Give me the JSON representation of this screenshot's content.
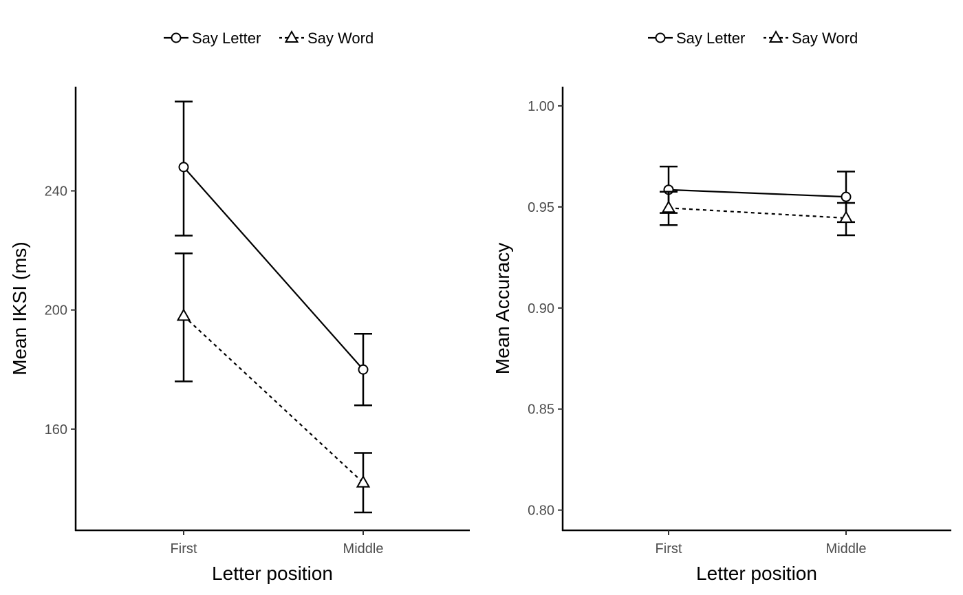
{
  "chart_data": [
    {
      "type": "line",
      "xlabel": "Letter position",
      "ylabel": "Mean IKSI (ms)",
      "categories": [
        "First",
        "Middle"
      ],
      "ylim": [
        126,
        275
      ],
      "yticks": [
        160,
        200,
        240
      ],
      "ytick_labels": [
        "160",
        "200",
        "240"
      ],
      "legend": {
        "position": "top",
        "entries": [
          "Say Letter",
          "Say Word"
        ]
      },
      "grid": false,
      "series": [
        {
          "name": "Say Letter",
          "values": [
            248,
            180
          ],
          "err_low": [
            225,
            168
          ],
          "err_high": [
            270,
            192
          ],
          "marker": "circle",
          "linestyle": "solid"
        },
        {
          "name": "Say Word",
          "values": [
            198,
            142
          ],
          "err_low": [
            176,
            132
          ],
          "err_high": [
            219,
            152
          ],
          "marker": "triangle",
          "linestyle": "dashed"
        }
      ]
    },
    {
      "type": "line",
      "xlabel": "Letter position",
      "ylabel": "Mean Accuracy",
      "categories": [
        "First",
        "Middle"
      ],
      "ylim": [
        0.79,
        1.0095
      ],
      "yticks": [
        0.8,
        0.85,
        0.9,
        0.95,
        1.0
      ],
      "ytick_labels": [
        "0.80",
        "0.85",
        "0.90",
        "0.95",
        "1.00"
      ],
      "legend": {
        "position": "top",
        "entries": [
          "Say Letter",
          "Say Word"
        ]
      },
      "grid": false,
      "series": [
        {
          "name": "Say Letter",
          "values": [
            0.9585,
            0.955
          ],
          "err_low": [
            0.947,
            0.9425
          ],
          "err_high": [
            0.97,
            0.9675
          ],
          "marker": "circle",
          "linestyle": "solid"
        },
        {
          "name": "Say Word",
          "values": [
            0.9495,
            0.9445
          ],
          "err_low": [
            0.941,
            0.936
          ],
          "err_high": [
            0.9575,
            0.952
          ],
          "marker": "triangle",
          "linestyle": "dashed"
        }
      ]
    }
  ]
}
